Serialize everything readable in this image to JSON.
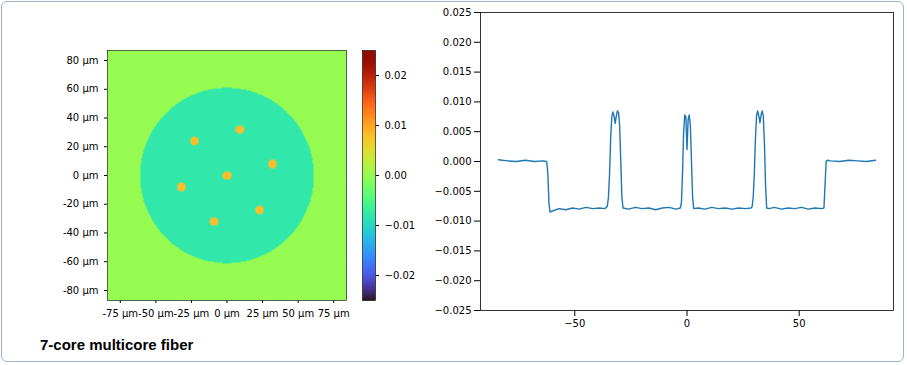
{
  "caption": "7-core multicore fiber",
  "chart_data": [
    {
      "type": "heatmap",
      "xlim": [
        -84,
        84
      ],
      "ylim": [
        -87,
        87
      ],
      "xticks": [
        {
          "value": -75,
          "label": "-75 µm"
        },
        {
          "value": -50,
          "label": "-50 µm"
        },
        {
          "value": -25,
          "label": "-25 µm"
        },
        {
          "value": 0,
          "label": "0 µm"
        },
        {
          "value": 25,
          "label": "25 µm"
        },
        {
          "value": 50,
          "label": "50 µm"
        },
        {
          "value": 75,
          "label": "75 µm"
        }
      ],
      "yticks": [
        {
          "value": -80,
          "label": "-80 µm"
        },
        {
          "value": -60,
          "label": "-60 µm"
        },
        {
          "value": -40,
          "label": "-40 µm"
        },
        {
          "value": -20,
          "label": "-20 µm"
        },
        {
          "value": 0,
          "label": "0 µm"
        },
        {
          "value": 20,
          "label": "20 µm"
        },
        {
          "value": 40,
          "label": "40 µm"
        },
        {
          "value": 60,
          "label": "60 µm"
        },
        {
          "value": 80,
          "label": "80 µm"
        }
      ],
      "cells": {
        "background": 0,
        "regions": [
          {
            "shape": "circle",
            "cx": 0,
            "cy": 0,
            "r": 61,
            "value": -0.008
          },
          {
            "shape": "circle",
            "cx": 0,
            "cy": 0,
            "r": 3,
            "value": 0.008
          },
          {
            "shape": "circle",
            "cx": 32,
            "cy": 8,
            "r": 3,
            "value": 0.008
          },
          {
            "shape": "circle",
            "cx": 9,
            "cy": 32,
            "r": 3,
            "value": 0.008
          },
          {
            "shape": "circle",
            "cx": -23,
            "cy": 24,
            "r": 3,
            "value": 0.008
          },
          {
            "shape": "circle",
            "cx": -32,
            "cy": -8,
            "r": 3,
            "value": 0.008
          },
          {
            "shape": "circle",
            "cx": -9,
            "cy": -32,
            "r": 3,
            "value": 0.008
          },
          {
            "shape": "circle",
            "cx": 23,
            "cy": -24,
            "r": 3,
            "value": 0.008
          }
        ]
      },
      "colorbar": {
        "range": [
          -0.025,
          0.025
        ],
        "ticks": [
          {
            "value": -0.02,
            "label": "−0.02"
          },
          {
            "value": -0.01,
            "label": "−0.01"
          },
          {
            "value": 0,
            "label": "0.00"
          },
          0.01,
          0.02
        ]
      }
    },
    {
      "type": "line",
      "xlim": [
        -92,
        92
      ],
      "ylim": [
        -0.025,
        0.025
      ],
      "xticks": [
        {
          "value": -50,
          "label": "−50"
        },
        0,
        50
      ],
      "yticks": [
        {
          "value": -0.025,
          "label": "−0.025"
        },
        {
          "value": -0.02,
          "label": "−0.020"
        },
        {
          "value": -0.015,
          "label": "−0.015"
        },
        {
          "value": -0.01,
          "label": "−0.010"
        },
        {
          "value": -0.005,
          "label": "−0.005"
        },
        {
          "value": 0,
          "label": "0.000"
        },
        0.005,
        {
          "value": 0.01,
          "label": "0.010"
        },
        0.015,
        {
          "value": 0.02,
          "label": "0.020"
        },
        0.025
      ],
      "grid": false,
      "color": "#1f77b4",
      "x": [
        -84,
        -80,
        -76,
        -72,
        -68,
        -64,
        -62.5,
        -62,
        -61.5,
        -61,
        -60,
        -57,
        -54,
        -51,
        -48,
        -45,
        -42,
        -39,
        -36.5,
        -35.5,
        -35,
        -34.5,
        -34,
        -33.5,
        -33,
        -32.5,
        -32,
        -31.5,
        -31,
        -30.5,
        -30,
        -29.5,
        -29,
        -28.5,
        -26,
        -23,
        -20,
        -17,
        -14,
        -11,
        -8,
        -5,
        -3,
        -2.5,
        -2,
        -1.5,
        -1,
        -0.5,
        0,
        0.5,
        1,
        1.5,
        2,
        2.5,
        3,
        5,
        8,
        11,
        14,
        17,
        20,
        23,
        26,
        28.5,
        29,
        29.5,
        30,
        30.5,
        31,
        31.5,
        32,
        32.5,
        33,
        33.5,
        34,
        34.5,
        35,
        35.5,
        36.5,
        39,
        42,
        45,
        48,
        51,
        54,
        57,
        60,
        61,
        61.5,
        62,
        62.5,
        64,
        68,
        72,
        76,
        80,
        84
      ],
      "values": [
        0.0003,
        0.0001,
        0.0,
        0.0002,
        0.0,
        0.0001,
        0.0,
        -0.002,
        -0.007,
        -0.0085,
        -0.0083,
        -0.0079,
        -0.0081,
        -0.0078,
        -0.008,
        -0.0077,
        -0.0079,
        -0.0078,
        -0.0079,
        -0.0075,
        -0.006,
        -0.002,
        0.004,
        0.0075,
        0.0083,
        0.0076,
        0.0064,
        0.0076,
        0.0085,
        0.0082,
        0.006,
        0.0,
        -0.006,
        -0.0078,
        -0.008,
        -0.0077,
        -0.0079,
        -0.0078,
        -0.0081,
        -0.0078,
        -0.0077,
        -0.008,
        -0.0078,
        -0.007,
        -0.002,
        0.005,
        0.0078,
        0.0075,
        0.002,
        0.007,
        0.0078,
        0.006,
        0.0,
        -0.006,
        -0.0079,
        -0.0078,
        -0.008,
        -0.0077,
        -0.0079,
        -0.0078,
        -0.008,
        -0.0078,
        -0.0079,
        -0.0078,
        -0.0076,
        -0.006,
        -0.002,
        0.004,
        0.0078,
        0.0085,
        0.0076,
        0.0065,
        0.0078,
        0.0085,
        0.0076,
        0.003,
        -0.004,
        -0.0078,
        -0.0079,
        -0.0077,
        -0.008,
        -0.0078,
        -0.0079,
        -0.0077,
        -0.008,
        -0.0078,
        -0.0079,
        -0.0078,
        -0.004,
        0.0,
        0.0002,
        0.0001,
        0.0,
        0.0002,
        0.0001,
        0.0,
        0.0002
      ]
    }
  ]
}
